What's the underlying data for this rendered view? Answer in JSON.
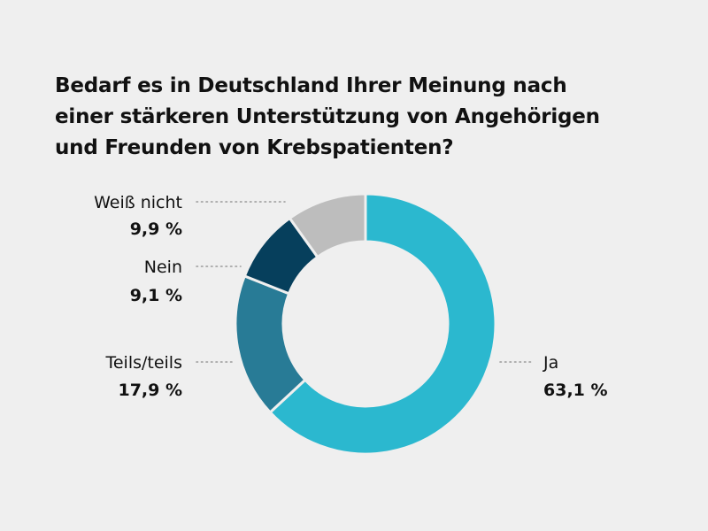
{
  "chart_data": {
    "type": "pie",
    "style": "donut",
    "title_lines": [
      "Bedarf es in Deutschland Ihrer Meinung nach",
      "einer stärkeren Unterstützung von Angehörigen",
      "und Freunden von Krebspatienten?"
    ],
    "slices": [
      {
        "label": "Ja",
        "value": 63.1,
        "display": "63,1 %",
        "color": "#2bb8cf"
      },
      {
        "label": "Teils/teils",
        "value": 17.9,
        "display": "17,9 %",
        "color": "#287b96"
      },
      {
        "label": "Nein",
        "value": 9.1,
        "display": "9,1 %",
        "color": "#063f5c"
      },
      {
        "label": "Weiß nicht",
        "value": 9.9,
        "display": "9,9 %",
        "color": "#bdbdbd"
      }
    ]
  }
}
